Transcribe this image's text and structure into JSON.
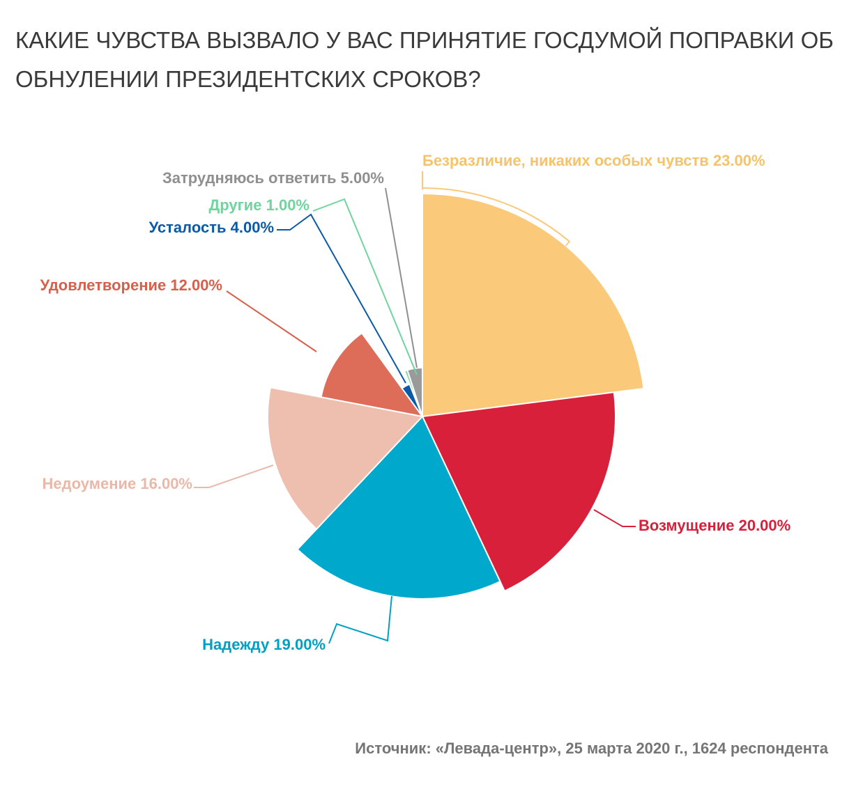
{
  "chart_data": {
    "type": "pie",
    "title": "Какие чувства вызвало у вас принятие Госдумой поправки об обнулении президентских сроков?",
    "slices": [
      {
        "label": "Безразличие, никаких особых чувств",
        "value": 23.0,
        "display": "23.00%",
        "color": "#fbc97a",
        "label_color": "#f5c36a"
      },
      {
        "label": "Возмущение",
        "value": 20.0,
        "display": "20.00%",
        "color": "#d8203b",
        "label_color": "#d8203b"
      },
      {
        "label": "Надежду",
        "value": 19.0,
        "display": "19.00%",
        "color": "#00a9cb",
        "label_color": "#00a0c2"
      },
      {
        "label": "Недоумение",
        "value": 16.0,
        "display": "16.00%",
        "color": "#eebeae",
        "label_color": "#eab8a8"
      },
      {
        "label": "Удовлетворение",
        "value": 12.0,
        "display": "12.00%",
        "color": "#dd6c59",
        "label_color": "#d6604c"
      },
      {
        "label": "Усталость",
        "value": 4.0,
        "display": "4.00%",
        "color": "#0a5aa8",
        "label_color": "#0a5aa8"
      },
      {
        "label": "Другие",
        "value": 1.0,
        "display": "1.00%",
        "color": "#7fdcaa",
        "label_color": "#6fd49e"
      },
      {
        "label": "Затрудняюсь ответить",
        "value": 5.0,
        "display": "5.00%",
        "color": "#9a9a9a",
        "label_color": "#8f8f8f"
      }
    ]
  },
  "source": "Источник: «Левада-центр», 25 марта 2020 г., 1624 респондента"
}
